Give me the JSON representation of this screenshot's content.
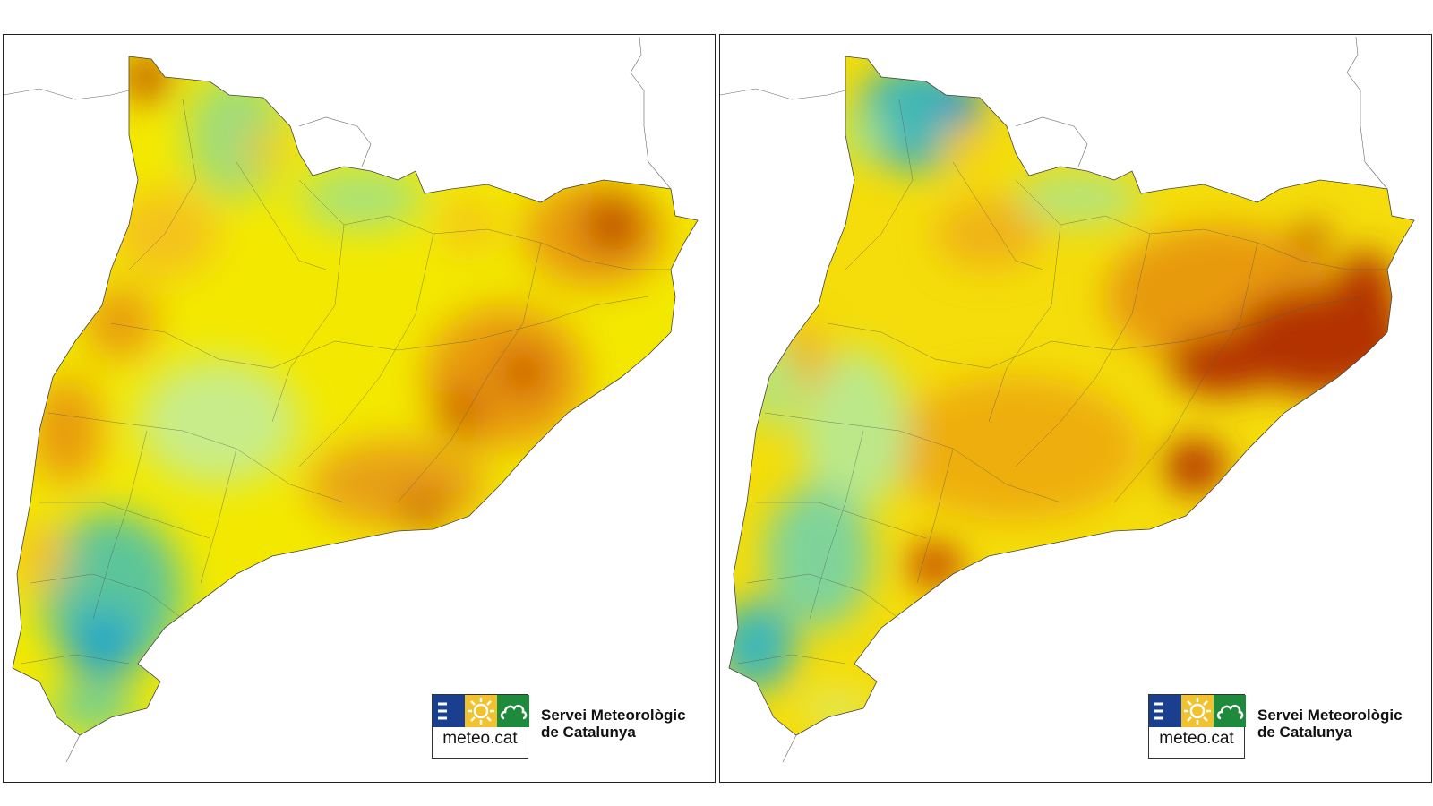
{
  "maps": [
    {
      "id": "left",
      "logo": {
        "brand": "meteo.cat",
        "org_line1": "Servei Meteorològic",
        "org_line2": "de Catalunya"
      }
    },
    {
      "id": "right",
      "logo": {
        "brand": "meteo.cat",
        "org_line1": "Servei Meteorològic",
        "org_line2": "de Catalunya"
      }
    }
  ],
  "colors": {
    "blue": "#1aa6c9",
    "cyan_green": "#4fc5a3",
    "light_green": "#a8e27a",
    "yellow": "#f7f000",
    "light_orange": "#f4c21a",
    "orange": "#e89a10",
    "dark_orange": "#d86a08",
    "dark_red": "#b33000"
  },
  "icons": [
    "waves-icon",
    "sun-icon",
    "cloud-icon"
  ]
}
